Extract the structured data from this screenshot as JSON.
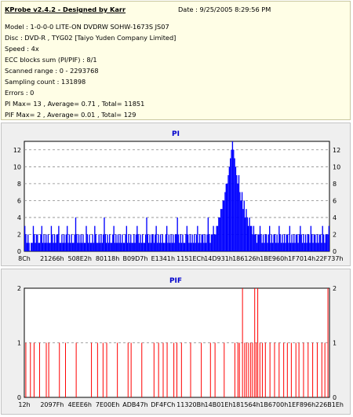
{
  "header": {
    "app_title": "KProbe v2.4.2 - Designed by Karr",
    "date": "Date : 9/25/2005 8:29:56 PM",
    "lines": [
      "Model : 1-0-0-0 LITE-ON DVDRW SOHW-1673S JS07",
      "Disc : DVD-R , TYG02 [Taiyo Yuden Company Limited]",
      "Speed : 4x",
      "ECC blocks sum (PI/PIF) : 8/1",
      "Scanned range : 0 - 2293768",
      "Sampling count : 131898",
      "Errors : 0",
      "PI Max= 13 , Average= 0.71 , Total= 11851",
      "PIF Max= 2 , Average= 0.01 , Total= 129"
    ]
  },
  "colors": {
    "pi": "#0000ff",
    "pif": "#ff0000",
    "title": "#0000cc",
    "panel": "#efefef"
  },
  "chart_data": [
    {
      "type": "bar",
      "title": "PI",
      "ylim": [
        0,
        13
      ],
      "yticks": [
        0,
        2,
        4,
        6,
        8,
        10,
        12
      ],
      "xlim": [
        0,
        2293768
      ],
      "xtick_labels": [
        "8Ch",
        "21266h",
        "508E2h",
        "80118h",
        "B09D7h",
        "E1341h",
        "1151ECh",
        "14D931h",
        "186126h",
        "1BE960h",
        "1F7014h",
        "22F737h"
      ],
      "grid": true,
      "series": [
        {
          "values": [
            3,
            2,
            1,
            2,
            1,
            0,
            1,
            1,
            3,
            2,
            1,
            2,
            2,
            1,
            1,
            2,
            3,
            1,
            2,
            1,
            2,
            1,
            2,
            1,
            1,
            3,
            2,
            1,
            2,
            1,
            2,
            2,
            3,
            1,
            1,
            2,
            1,
            2,
            1,
            2,
            3,
            1,
            2,
            1,
            2,
            1,
            1,
            2,
            4,
            2,
            1,
            2,
            1,
            2,
            1,
            2,
            1,
            1,
            3,
            2,
            1,
            2,
            1,
            1,
            2,
            1,
            3,
            2,
            1,
            1,
            2,
            1,
            2,
            1,
            2,
            4,
            2,
            1,
            2,
            1,
            2,
            1,
            1,
            2,
            3,
            1,
            2,
            1,
            2,
            1,
            2,
            1,
            2,
            1,
            1,
            2,
            3,
            1,
            2,
            1,
            2,
            1,
            1,
            2,
            1,
            2,
            3,
            2,
            1,
            2,
            1,
            2,
            1,
            1,
            2,
            4,
            2,
            1,
            2,
            1,
            2,
            2,
            1,
            2,
            3,
            1,
            2,
            1,
            2,
            1,
            2,
            1,
            1,
            2,
            3,
            1,
            2,
            1,
            2,
            1,
            2,
            1,
            2,
            2,
            4,
            2,
            1,
            2,
            1,
            2,
            1,
            1,
            2,
            3,
            2,
            1,
            2,
            1,
            2,
            1,
            2,
            1,
            2,
            3,
            1,
            2,
            1,
            2,
            2,
            1,
            2,
            1,
            2,
            4,
            2,
            1,
            2,
            2,
            3,
            2,
            2,
            3,
            3,
            4,
            4,
            5,
            5,
            6,
            6,
            7,
            8,
            8,
            9,
            10,
            11,
            12,
            13,
            12,
            11,
            10,
            9,
            8,
            9,
            7,
            6,
            7,
            5,
            6,
            4,
            5,
            4,
            3,
            4,
            3,
            3,
            2,
            3,
            2,
            2,
            1,
            2,
            2,
            3,
            2,
            1,
            2,
            1,
            2,
            2,
            1,
            2,
            3,
            1,
            2,
            1,
            2,
            2,
            1,
            2,
            1,
            3,
            2,
            1,
            2,
            1,
            2,
            1,
            2,
            2,
            1,
            3,
            1,
            2,
            1,
            2,
            1,
            2,
            2,
            1,
            2,
            3,
            2,
            1,
            2,
            1,
            2,
            1,
            2,
            2,
            1,
            3,
            2,
            1,
            2,
            2,
            1,
            2,
            1,
            2,
            2,
            1,
            3,
            2,
            1,
            2,
            2,
            2,
            3
          ]
        }
      ]
    },
    {
      "type": "bar",
      "title": "PIF",
      "ylim": [
        0,
        2
      ],
      "yticks": [
        0,
        1,
        2
      ],
      "xlim": [
        0,
        2293768
      ],
      "xtick_labels": [
        "12h",
        "2097Fh",
        "4EEE6h",
        "7E00Eh",
        "ADB47h",
        "DF4FCh",
        "11320Bh",
        "14B01Eh",
        "181564h",
        "1B6700h",
        "1EF896h",
        "226B1Eh"
      ],
      "grid": true,
      "series": [
        {
          "points": [
            [
              0.005,
              1
            ],
            [
              0.02,
              1
            ],
            [
              0.032,
              1
            ],
            [
              0.05,
              1
            ],
            [
              0.072,
              1
            ],
            [
              0.08,
              1
            ],
            [
              0.115,
              1
            ],
            [
              0.135,
              1
            ],
            [
              0.17,
              1
            ],
            [
              0.22,
              1
            ],
            [
              0.24,
              1
            ],
            [
              0.258,
              1
            ],
            [
              0.27,
              1
            ],
            [
              0.305,
              1
            ],
            [
              0.34,
              1
            ],
            [
              0.35,
              1
            ],
            [
              0.385,
              1
            ],
            [
              0.425,
              1
            ],
            [
              0.44,
              1
            ],
            [
              0.455,
              1
            ],
            [
              0.468,
              1
            ],
            [
              0.49,
              1
            ],
            [
              0.5,
              1
            ],
            [
              0.515,
              1
            ],
            [
              0.545,
              1
            ],
            [
              0.58,
              1
            ],
            [
              0.61,
              1
            ],
            [
              0.625,
              1
            ],
            [
              0.655,
              1
            ],
            [
              0.69,
              1
            ],
            [
              0.7,
              1
            ],
            [
              0.705,
              1
            ],
            [
              0.715,
              2
            ],
            [
              0.722,
              1
            ],
            [
              0.728,
              1
            ],
            [
              0.735,
              1
            ],
            [
              0.742,
              1
            ],
            [
              0.748,
              1
            ],
            [
              0.755,
              2
            ],
            [
              0.76,
              1
            ],
            [
              0.765,
              2
            ],
            [
              0.772,
              1
            ],
            [
              0.78,
              1
            ],
            [
              0.79,
              1
            ],
            [
              0.805,
              1
            ],
            [
              0.82,
              1
            ],
            [
              0.835,
              1
            ],
            [
              0.85,
              1
            ],
            [
              0.862,
              1
            ],
            [
              0.875,
              1
            ],
            [
              0.89,
              1
            ],
            [
              0.9,
              1
            ],
            [
              0.915,
              1
            ],
            [
              0.93,
              1
            ],
            [
              0.945,
              1
            ],
            [
              0.96,
              1
            ],
            [
              0.975,
              1
            ],
            [
              0.985,
              1
            ],
            [
              0.995,
              2
            ]
          ]
        }
      ]
    }
  ]
}
